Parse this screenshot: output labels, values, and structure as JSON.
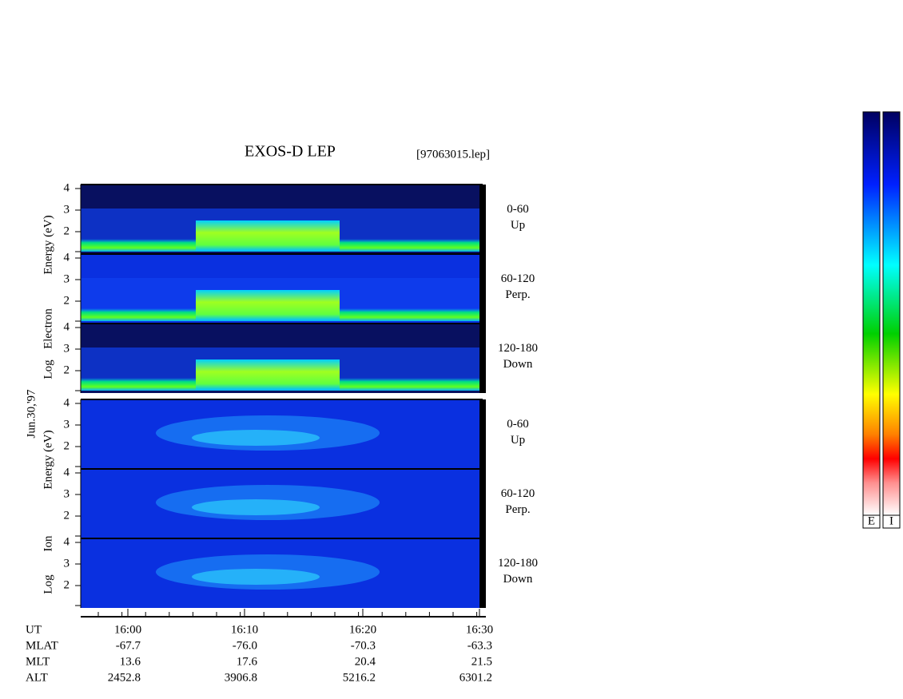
{
  "header": {
    "title": "EXOS-D LEP",
    "file": "[97063015.lep]",
    "date": "Jun.30,'97"
  },
  "electron": {
    "axis_label": [
      "Log",
      "Electron",
      "Energy (eV)"
    ],
    "panels": [
      {
        "range": "0-60",
        "dir": "Up"
      },
      {
        "range": "60-120",
        "dir": "Perp."
      },
      {
        "range": "120-180",
        "dir": "Down"
      }
    ]
  },
  "ion": {
    "axis_label": [
      "Log",
      "Ion",
      "Energy (eV)"
    ],
    "panels": [
      {
        "range": "0-60",
        "dir": "Up"
      },
      {
        "range": "60-120",
        "dir": "Perp."
      },
      {
        "range": "120-180",
        "dir": "Down"
      }
    ]
  },
  "yticks": [
    "4",
    "3",
    "2"
  ],
  "x_table": {
    "rows": [
      [
        "UT",
        "16:00",
        "16:10",
        "16:20",
        "16:30"
      ],
      [
        "MLAT",
        "-67.7",
        "-76.0",
        "-70.3",
        "-63.3"
      ],
      [
        "MLT",
        "13.6",
        "17.6",
        "20.4",
        "21.5"
      ],
      [
        "ALT",
        "2452.8",
        "3906.8",
        "5216.2",
        "6301.2"
      ]
    ]
  },
  "colorbars": [
    "E",
    "I"
  ]
}
